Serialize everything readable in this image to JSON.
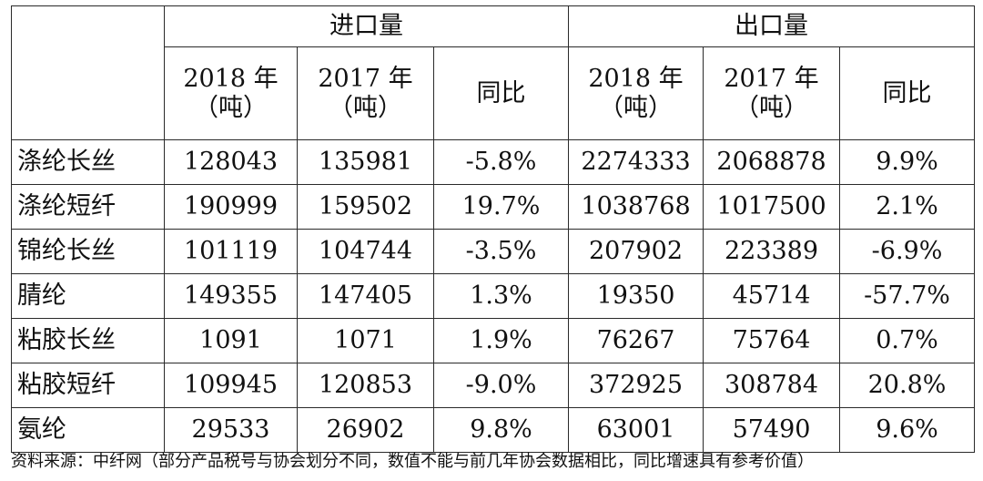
{
  "table": {
    "group_headers": [
      "进口量",
      "出口量"
    ],
    "sub_headers": [
      {
        "line1": "2018 年",
        "line2": "（吨）"
      },
      {
        "line1": "2017 年",
        "line2": "（吨）"
      },
      {
        "line1": "同比",
        "line2": ""
      },
      {
        "line1": "2018 年",
        "line2": "（吨）"
      },
      {
        "line1": "2017 年",
        "line2": "（吨）"
      },
      {
        "line1": "同比",
        "line2": ""
      }
    ],
    "rows": [
      {
        "name": "涤纶长丝",
        "cells": [
          "128043",
          "135981",
          "-5.8%",
          "2274333",
          "2068878",
          "9.9%"
        ]
      },
      {
        "name": "涤纶短纤",
        "cells": [
          "190999",
          "159502",
          "19.7%",
          "1038768",
          "1017500",
          "2.1%"
        ]
      },
      {
        "name": "锦纶长丝",
        "cells": [
          "101119",
          "104744",
          "-3.5%",
          "207902",
          "223389",
          "-6.9%"
        ]
      },
      {
        "name": "腈纶",
        "cells": [
          "149355",
          "147405",
          "1.3%",
          "19350",
          "45714",
          "-57.7%"
        ]
      },
      {
        "name": "粘胶长丝",
        "cells": [
          "1091",
          "1071",
          "1.9%",
          "76267",
          "75764",
          "0.7%"
        ]
      },
      {
        "name": "粘胶短纤",
        "cells": [
          "109945",
          "120853",
          "-9.0%",
          "372925",
          "308784",
          "20.8%"
        ]
      },
      {
        "name": "氨纶",
        "cells": [
          "29533",
          "26902",
          "9.8%",
          "63001",
          "57490",
          "9.6%"
        ]
      }
    ]
  },
  "footnote": "资料来源：中纤网（部分产品税号与协会划分不同，数值不能与前几年协会数据相比，同比增速具有参考价值）"
}
